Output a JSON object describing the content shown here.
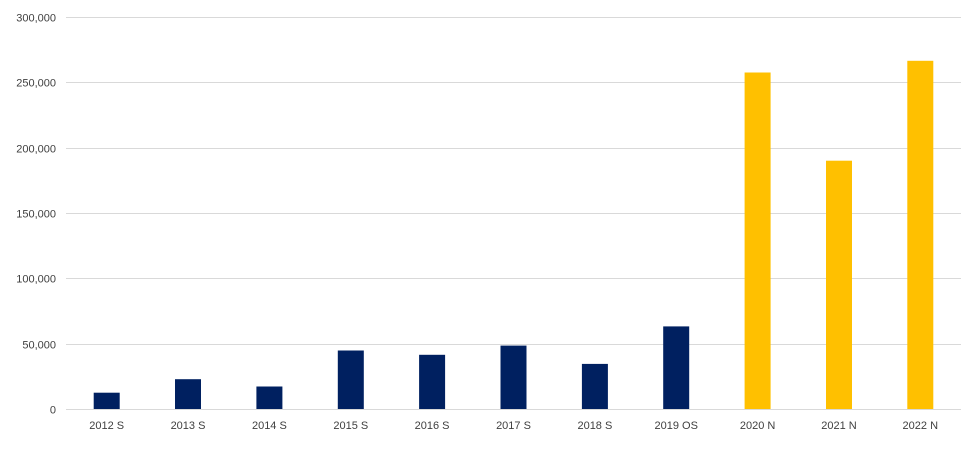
{
  "chart_data": {
    "type": "bar",
    "categories": [
      "2012 S",
      "2013 S",
      "2014 S",
      "2015 S",
      "2016 S",
      "2017 S",
      "2018 S",
      "2019 OS",
      "2020 N",
      "2021 N",
      "2022 N"
    ],
    "values": [
      12500,
      22800,
      17200,
      44800,
      41500,
      48500,
      34500,
      63200,
      257500,
      190000,
      266500
    ],
    "bar_colors": [
      "#002060",
      "#002060",
      "#002060",
      "#002060",
      "#002060",
      "#002060",
      "#002060",
      "#002060",
      "#ffc000",
      "#ffc000",
      "#ffc000"
    ],
    "title": "",
    "xlabel": "",
    "ylabel": "",
    "ylim": [
      0,
      300000
    ],
    "yticks": [
      0,
      50000,
      100000,
      150000,
      200000,
      250000,
      300000
    ],
    "ytick_labels": [
      "0",
      "50,000",
      "100,000",
      "150,000",
      "200,000",
      "250,000",
      "300,000"
    ],
    "grid": true,
    "legend": "none"
  }
}
